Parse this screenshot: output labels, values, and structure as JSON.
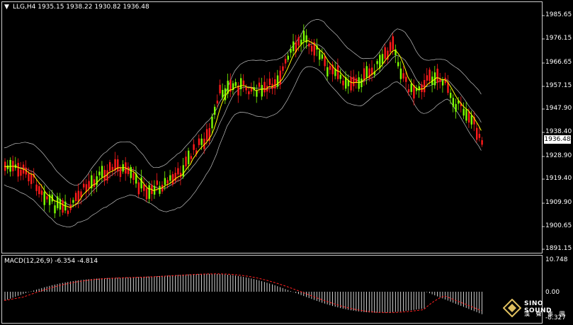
{
  "header": {
    "menu_icon": "triangle-down-icon",
    "symbol_info": "LLG,H4  1935.15 1938.22 1930.82 1936.48"
  },
  "main_axis": {
    "labels": [
      "1985.65",
      "1976.15",
      "1966.65",
      "1957.15",
      "1947.90",
      "1938.40",
      "1928.90",
      "1919.40",
      "1909.90",
      "1900.65",
      "1891.15"
    ],
    "current_price": "1936.48"
  },
  "macd": {
    "title": "MACD(12,26,9) -6.354 -4.814",
    "labels": [
      "10.748",
      "0.00",
      "-8.327"
    ]
  },
  "logo": {
    "name": "SINO SOUND",
    "subtitle": "漢 聲 集 團"
  },
  "colors": {
    "background": "#000000",
    "bull_candle": "#7CFC00",
    "bear_candle": "#ff1a1a",
    "ma_line": "#ffff00",
    "bollinger": "#c0c0c0",
    "signal_line": "#ff2020",
    "macd_hist": "#ffffff"
  }
}
